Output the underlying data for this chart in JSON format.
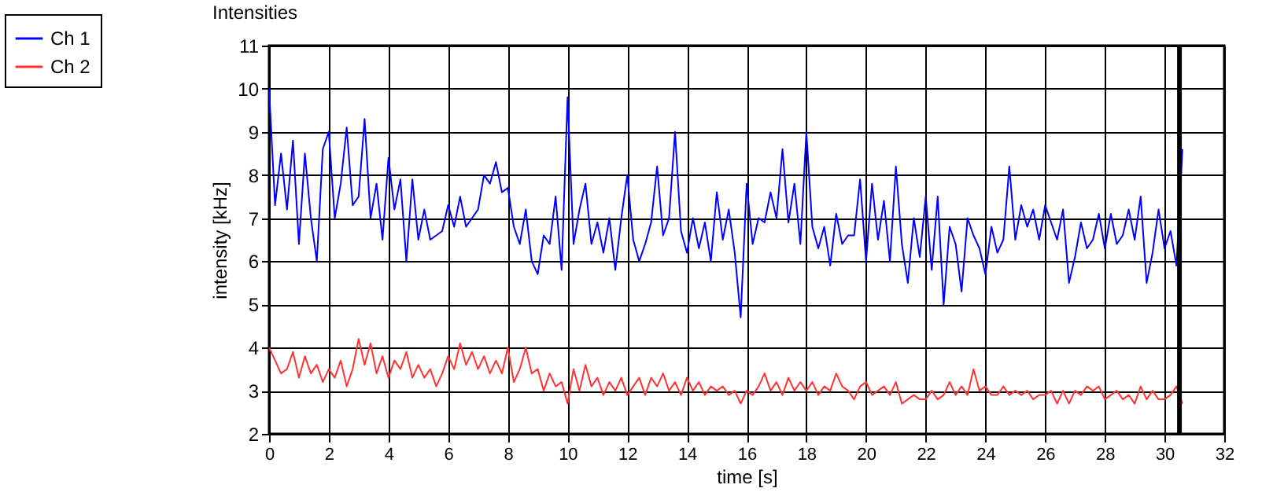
{
  "chart_data": {
    "type": "line",
    "title": "Intensities",
    "xlabel": "time [s]",
    "ylabel": "intensity [kHz]",
    "x": [
      0,
      0.2,
      0.4,
      0.6,
      0.8,
      1.0,
      1.2,
      1.4,
      1.6,
      1.8,
      2.0,
      2.2,
      2.4,
      2.6,
      2.8,
      3.0,
      3.2,
      3.4,
      3.6,
      3.8,
      4.0,
      4.2,
      4.4,
      4.6,
      4.8,
      5.0,
      5.2,
      5.4,
      5.6,
      5.8,
      6.0,
      6.2,
      6.4,
      6.6,
      6.8,
      7.0,
      7.2,
      7.4,
      7.6,
      7.8,
      8.0,
      8.2,
      8.4,
      8.6,
      8.8,
      9.0,
      9.2,
      9.4,
      9.6,
      9.8,
      10.0,
      10.2,
      10.4,
      10.6,
      10.8,
      11.0,
      11.2,
      11.4,
      11.6,
      11.8,
      12.0,
      12.2,
      12.4,
      12.6,
      12.8,
      13.0,
      13.2,
      13.4,
      13.6,
      13.8,
      14.0,
      14.2,
      14.4,
      14.6,
      14.8,
      15.0,
      15.2,
      15.4,
      15.6,
      15.8,
      16.0,
      16.2,
      16.4,
      16.6,
      16.8,
      17.0,
      17.2,
      17.4,
      17.6,
      17.8,
      18.0,
      18.2,
      18.4,
      18.6,
      18.8,
      19.0,
      19.2,
      19.4,
      19.6,
      19.8,
      20.0,
      20.2,
      20.4,
      20.6,
      20.8,
      21.0,
      21.2,
      21.4,
      21.6,
      21.8,
      22.0,
      22.2,
      22.4,
      22.6,
      22.8,
      23.0,
      23.2,
      23.4,
      23.6,
      23.8,
      24.0,
      24.2,
      24.4,
      24.6,
      24.8,
      25.0,
      25.2,
      25.4,
      25.6,
      25.8,
      26.0,
      26.2,
      26.4,
      26.6,
      26.8,
      27.0,
      27.2,
      27.4,
      27.6,
      27.8,
      28.0,
      28.2,
      28.4,
      28.6,
      28.8,
      29.0,
      29.2,
      29.4,
      29.6,
      29.8,
      30.0,
      30.2,
      30.4,
      30.6
    ],
    "series": [
      {
        "name": "Ch 1",
        "color": "#0000ff",
        "values": [
          10,
          7.3,
          8.5,
          7.2,
          8.8,
          6.4,
          8.5,
          7.0,
          6.0,
          8.6,
          9.0,
          7.0,
          7.8,
          9.1,
          7.3,
          7.5,
          9.3,
          7.0,
          7.8,
          6.5,
          8.4,
          7.2,
          7.9,
          6.0,
          7.9,
          6.5,
          7.2,
          6.5,
          6.6,
          6.7,
          7.3,
          6.8,
          7.5,
          6.8,
          7.0,
          7.2,
          8.0,
          7.8,
          8.3,
          7.6,
          7.7,
          6.8,
          6.4,
          7.2,
          6.0,
          5.7,
          6.6,
          6.4,
          7.5,
          5.8,
          9.8,
          6.4,
          7.2,
          7.8,
          6.4,
          6.9,
          6.2,
          7.0,
          5.8,
          7.0,
          8.0,
          6.5,
          6.0,
          6.4,
          6.9,
          8.2,
          6.6,
          7.0,
          9.0,
          6.7,
          6.2,
          7.0,
          6.3,
          6.9,
          6.0,
          7.6,
          6.5,
          7.2,
          6.2,
          4.7,
          7.8,
          6.4,
          7.0,
          6.9,
          7.6,
          7.0,
          8.6,
          6.9,
          7.8,
          6.4,
          9.0,
          6.8,
          6.3,
          6.8,
          5.9,
          7.1,
          6.4,
          6.6,
          6.6,
          7.9,
          6.0,
          7.8,
          6.5,
          7.4,
          6.0,
          8.2,
          6.4,
          5.5,
          7.0,
          6.1,
          7.5,
          5.8,
          7.5,
          5.0,
          6.8,
          6.4,
          5.3,
          7.0,
          6.6,
          6.3,
          5.7,
          6.8,
          6.2,
          6.5,
          8.2,
          6.5,
          7.3,
          6.8,
          7.2,
          6.5,
          7.3,
          6.9,
          6.5,
          7.2,
          5.5,
          6.1,
          6.9,
          6.3,
          6.5,
          7.1,
          6.3,
          7.1,
          6.4,
          6.6,
          7.2,
          6.5,
          7.5,
          5.5,
          6.2,
          7.2,
          6.3,
          6.7,
          5.9,
          8.6
        ]
      },
      {
        "name": "Ch 2",
        "color": "#ff3333",
        "values": [
          4.0,
          3.7,
          3.4,
          3.5,
          3.9,
          3.3,
          3.8,
          3.4,
          3.6,
          3.2,
          3.5,
          3.3,
          3.7,
          3.1,
          3.5,
          4.2,
          3.6,
          4.1,
          3.4,
          3.8,
          3.3,
          3.7,
          3.5,
          3.9,
          3.3,
          3.6,
          3.3,
          3.5,
          3.1,
          3.4,
          3.8,
          3.5,
          4.1,
          3.6,
          3.9,
          3.5,
          3.8,
          3.4,
          3.7,
          3.4,
          4.0,
          3.2,
          3.5,
          4.0,
          3.4,
          3.5,
          3.0,
          3.4,
          3.1,
          3.2,
          2.7,
          3.5,
          3.0,
          3.6,
          3.1,
          3.3,
          2.9,
          3.2,
          3.0,
          3.3,
          2.9,
          3.1,
          3.3,
          2.9,
          3.3,
          3.1,
          3.4,
          3.0,
          3.2,
          2.9,
          3.3,
          3.0,
          3.2,
          2.9,
          3.1,
          3.0,
          3.1,
          2.9,
          3.0,
          2.7,
          3.0,
          2.9,
          3.1,
          3.4,
          3.0,
          3.2,
          2.9,
          3.3,
          3.0,
          3.2,
          3.0,
          3.2,
          2.9,
          3.1,
          3.0,
          3.4,
          3.1,
          3.0,
          2.8,
          3.1,
          3.2,
          2.9,
          3.0,
          3.1,
          2.9,
          3.2,
          2.7,
          2.8,
          2.9,
          2.8,
          2.8,
          3.0,
          2.8,
          2.9,
          3.2,
          2.9,
          3.1,
          2.9,
          3.5,
          3.0,
          3.1,
          2.9,
          2.9,
          3.1,
          2.9,
          3.0,
          2.9,
          3.0,
          2.8,
          2.9,
          2.9,
          3.0,
          2.7,
          3.0,
          2.7,
          3.0,
          2.9,
          3.1,
          3.0,
          3.1,
          2.8,
          2.9,
          3.0,
          2.8,
          2.9,
          2.7,
          3.1,
          2.8,
          3.0,
          2.8,
          2.8,
          2.9,
          3.1,
          2.7
        ]
      }
    ],
    "xlim": [
      0,
      32
    ],
    "xticks": [
      0,
      2,
      4,
      6,
      8,
      10,
      12,
      14,
      16,
      18,
      20,
      22,
      24,
      26,
      28,
      30,
      32
    ],
    "ylim": [
      2,
      11
    ],
    "yticks": [
      2,
      3,
      4,
      5,
      6,
      7,
      8,
      9,
      10,
      11
    ],
    "ref_lines": [
      {
        "axis": "x",
        "value": 30.5,
        "color": "#000000"
      }
    ],
    "grid": true,
    "legend": "top left",
    "marker": "none",
    "line_style": "solid"
  }
}
